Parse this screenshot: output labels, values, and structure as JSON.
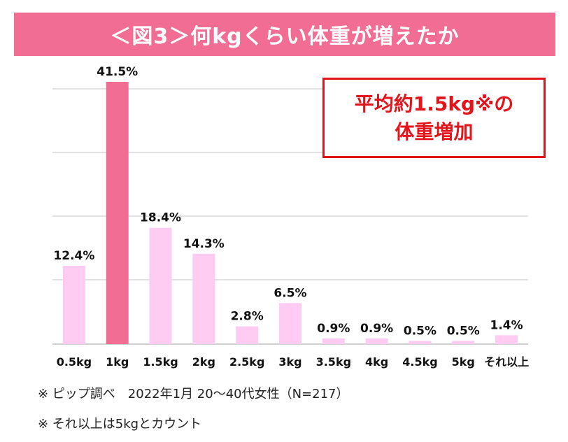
{
  "header": {
    "title": "＜図3＞何kgくらい体重が増えたか"
  },
  "callout": {
    "line1": "平均約1.5kg※の",
    "line2": "体重増加"
  },
  "footnotes": {
    "note1": "※ ピップ調べ　2022年1月 20〜40代女性（N=217）",
    "note2": "※ それ以上は5kgとカウント"
  },
  "colors": {
    "banner": "#f26d93",
    "bar": "#fecbf2",
    "highlight_bar": "#f26d93",
    "callout": "#e4141b"
  },
  "chart_data": {
    "type": "bar",
    "categories": [
      "0.5kg",
      "1kg",
      "1.5kg",
      "2kg",
      "2.5kg",
      "3kg",
      "3.5kg",
      "4kg",
      "4.5kg",
      "5kg",
      "それ以上"
    ],
    "values": [
      12.4,
      41.5,
      18.4,
      14.3,
      2.8,
      6.5,
      0.9,
      0.9,
      0.5,
      0.5,
      1.4
    ],
    "value_labels": [
      "12.4%",
      "41.5%",
      "18.4%",
      "14.3%",
      "2.8%",
      "6.5%",
      "0.9%",
      "0.9%",
      "0.5%",
      "0.5%",
      "1.4%"
    ],
    "highlight_index": 1,
    "ylim": [
      0,
      41.5
    ],
    "grid": true,
    "xlabel": "",
    "ylabel": ""
  }
}
